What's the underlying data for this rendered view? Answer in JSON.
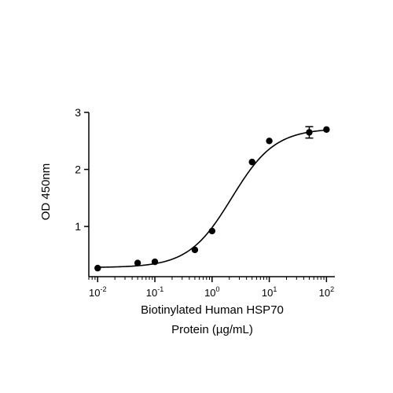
{
  "chart_data": {
    "type": "scatter",
    "title": "",
    "xlabel_line1": "Biotinylated Human HSP70",
    "xlabel_line2": "Protein (µg/mL)",
    "ylabel": "OD 450nm",
    "x_scale": "log",
    "xlim": [
      0.007,
      140
    ],
    "ylim": [
      0.12,
      3.0
    ],
    "x_ticks": [
      {
        "value": 0.01,
        "base": "10",
        "exp": "-2"
      },
      {
        "value": 0.1,
        "base": "10",
        "exp": "-1"
      },
      {
        "value": 1,
        "base": "10",
        "exp": "0"
      },
      {
        "value": 10,
        "base": "10",
        "exp": "1"
      },
      {
        "value": 100,
        "base": "10",
        "exp": "2"
      }
    ],
    "y_ticks": [
      1,
      2,
      3
    ],
    "grid": false,
    "legend": "none",
    "series": [
      {
        "points": [
          {
            "x": 0.01,
            "y": 0.27
          },
          {
            "x": 0.05,
            "y": 0.36
          },
          {
            "x": 0.1,
            "y": 0.38
          },
          {
            "x": 0.5,
            "y": 0.59
          },
          {
            "x": 1,
            "y": 0.92
          },
          {
            "x": 5,
            "y": 2.13
          },
          {
            "x": 10,
            "y": 2.5
          },
          {
            "x": 50,
            "y": 2.65,
            "err": 0.1
          },
          {
            "x": 100,
            "y": 2.7
          }
        ],
        "fit": {
          "model": "4PL",
          "bottom": 0.28,
          "top": 2.72,
          "ec50": 2.2,
          "hill": 1.15
        }
      }
    ],
    "colors": {
      "points": "#000000",
      "curve": "#000000",
      "axes": "#000000"
    }
  }
}
